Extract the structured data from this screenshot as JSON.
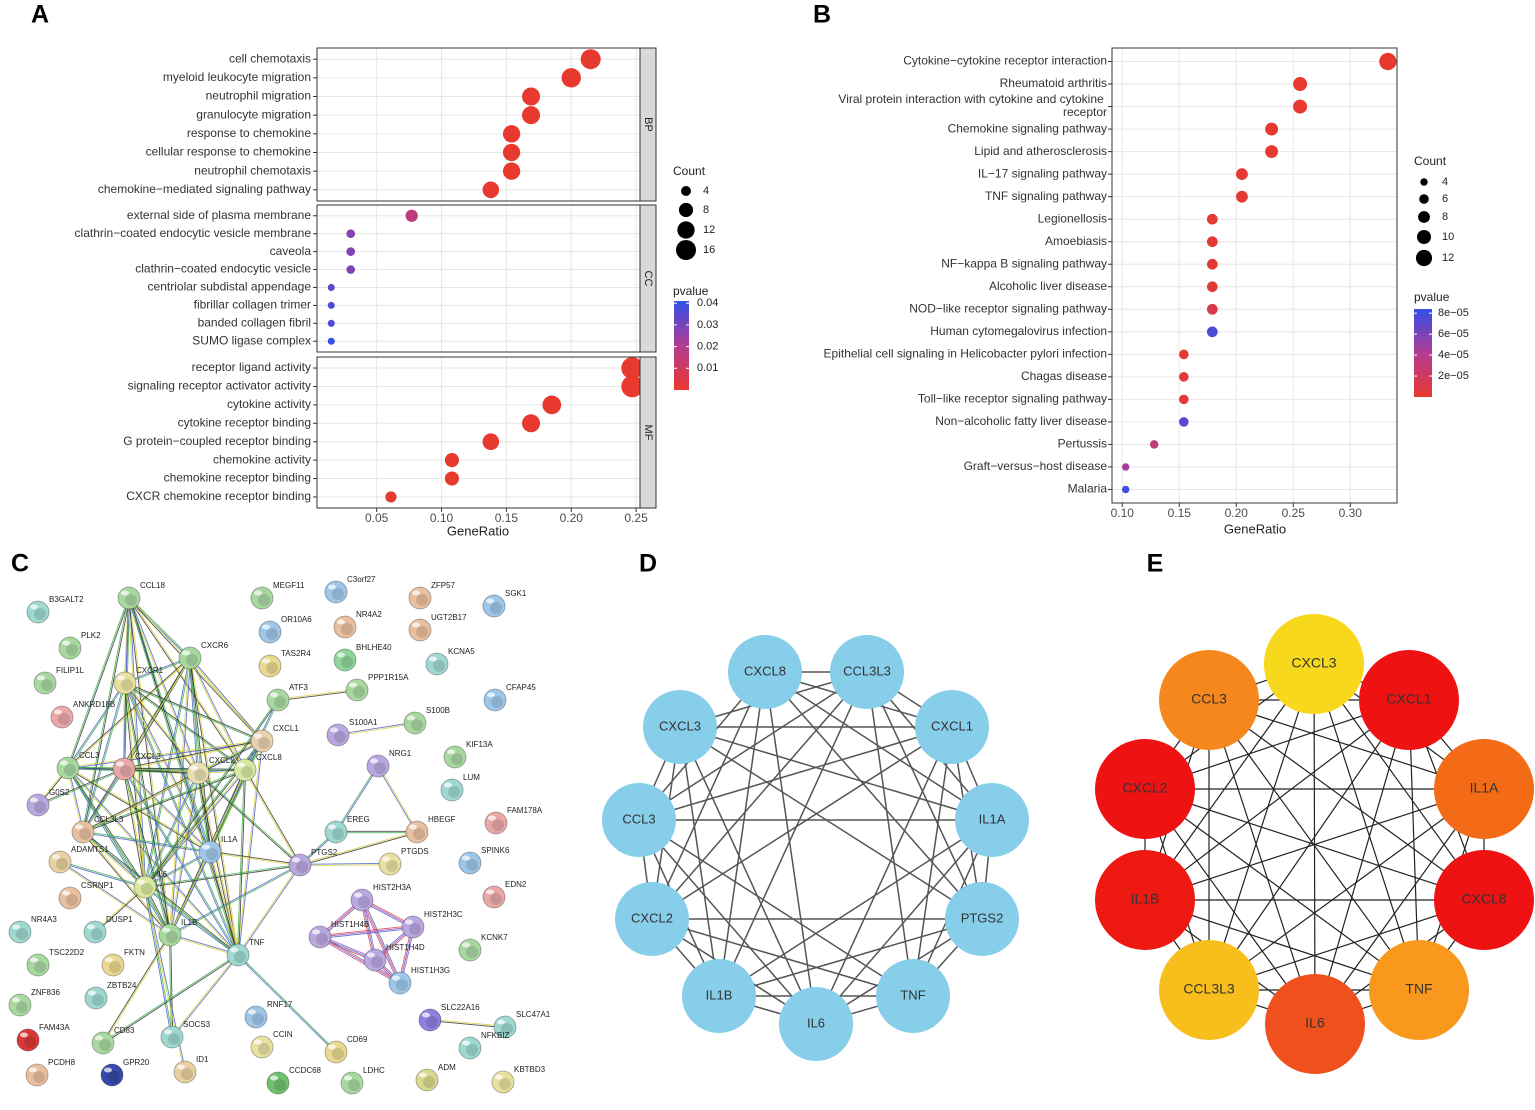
{
  "chart_data": [
    {
      "panel": "A",
      "type": "dot",
      "x_label": "GeneRatio",
      "xlim": [
        0.004,
        0.253
      ],
      "xticks": [
        0.05,
        {
          "value": 0.1,
          "label": "0.10"
        },
        0.15,
        {
          "value": 0.2,
          "label": "0.20"
        },
        0.25
      ],
      "grid": true,
      "facets": [
        {
          "name": "BP",
          "categories": [
            "cell chemotaxis",
            "myeloid leukocyte migration",
            "neutrophil migration",
            "granulocyte migration",
            "response to chemokine",
            "cellular response to chemokine",
            "neutrophil chemotaxis",
            "chemokine−mediated signaling pathway"
          ],
          "values": [
            0.215,
            0.2,
            0.169,
            0.169,
            0.154,
            0.154,
            0.154,
            0.138
          ],
          "sizes": [
            16,
            15,
            13,
            13,
            12,
            12,
            12,
            11
          ],
          "pvalues": [
            1e-09,
            1e-09,
            2e-07,
            2e-07,
            5e-07,
            5e-07,
            5e-07,
            2e-06
          ]
        },
        {
          "name": "CC",
          "categories": [
            "external side of plasma membrane",
            "clathrin−coated endocytic vesicle membrane",
            "caveola",
            "clathrin−coated endocytic vesicle",
            "centriolar subdistal appendage",
            "fibrillar collagen trimer",
            "banded collagen fibril",
            "SUMO ligase complex"
          ],
          "values": [
            0.077,
            0.03,
            0.03,
            0.03,
            0.015,
            0.015,
            0.015,
            0.015
          ],
          "sizes": [
            6,
            3,
            3,
            3,
            2,
            2,
            2,
            2
          ],
          "pvalues": [
            0.016,
            0.027,
            0.028,
            0.029,
            0.034,
            0.036,
            0.037,
            0.041
          ]
        },
        {
          "name": "MF",
          "categories": [
            "receptor ligand activity",
            "signaling receptor activator activity",
            "cytokine activity",
            "cytokine receptor binding",
            "G protein−coupled receptor binding",
            "chemokine activity",
            "chemokine receptor binding",
            "CXCR chemokine receptor binding"
          ],
          "values": [
            0.247,
            0.247,
            0.185,
            0.169,
            0.138,
            0.108,
            0.108,
            0.061
          ],
          "sizes": [
            19,
            19,
            14,
            13,
            11,
            8,
            8,
            5
          ],
          "pvalues": [
            1e-08,
            1e-08,
            2e-08,
            5e-08,
            1e-06,
            2e-05,
            2e-05,
            0.0012
          ]
        }
      ],
      "size_legend": {
        "title": "Count",
        "values": [
          4,
          8,
          12,
          16
        ]
      },
      "color_legend": {
        "title": "pvalue",
        "lim": [
          0,
          0.041
        ],
        "ticks": [
          0.01,
          0.02,
          0.03,
          0.04
        ],
        "colors": [
          "#e8392e",
          "#b23b93",
          "#3250e8"
        ]
      }
    },
    {
      "panel": "B",
      "type": "dot",
      "x_label": "GeneRatio",
      "xlim": [
        0.091,
        0.341
      ],
      "xticks": [
        {
          "value": 0.1,
          "label": "0.10"
        },
        0.15,
        {
          "value": 0.2,
          "label": "0.20"
        },
        0.25,
        {
          "value": 0.3,
          "label": "0.30"
        }
      ],
      "grid": true,
      "facets": [
        {
          "categories": [
            "Cytokine−cytokine receptor interaction",
            "Rheumatoid arthritis",
            "Viral protein interaction with cytokine and cytokine receptor",
            "Chemokine signaling pathway",
            "Lipid and atherosclerosis",
            "IL−17 signaling pathway",
            "TNF signaling pathway",
            "Legionellosis",
            "Amoebiasis",
            "NF−kappa B signaling pathway",
            "Alcoholic liver disease",
            "NOD−like receptor signaling pathway",
            "Human cytomegalovirus infection",
            "Epithelial cell signaling in Helicobacter pylori infection",
            "Chagas disease",
            "Toll−like receptor signaling pathway",
            "Non−alcoholic fatty liver disease",
            "Pertussis",
            "Graft−versus−host disease",
            "Malaria"
          ],
          "values": [
            0.333,
            0.256,
            0.256,
            0.231,
            0.231,
            0.205,
            0.205,
            0.179,
            0.179,
            0.179,
            0.179,
            0.179,
            0.179,
            0.154,
            0.154,
            0.154,
            0.154,
            0.128,
            0.103,
            0.103
          ],
          "sizes": [
            13,
            10,
            10,
            9,
            9,
            8,
            8,
            7,
            7,
            7,
            7,
            7,
            7,
            6,
            6,
            6,
            6,
            5,
            4,
            4
          ],
          "pvalues": [
            1e-08,
            2e-07,
            2e-07,
            1e-06,
            1e-06,
            3e-06,
            3e-06,
            2e-06,
            2e-06,
            3e-06,
            4e-06,
            1.2e-05,
            7.6e-05,
            3e-06,
            3e-06,
            4e-06,
            7.2e-05,
            3.2e-05,
            4.5e-05,
            8e-05
          ]
        }
      ],
      "size_legend": {
        "title": "Count",
        "values": [
          4,
          6,
          8,
          10,
          12
        ]
      },
      "color_legend": {
        "title": "pvalue",
        "lim": [
          0,
          8.4e-05
        ],
        "ticks": [
          {
            "value": 2e-05,
            "label": "2e−05"
          },
          {
            "value": 4e-05,
            "label": "4e−05"
          },
          {
            "value": 6e-05,
            "label": "6e−05"
          },
          {
            "value": 8e-05,
            "label": "8e−05"
          }
        ],
        "colors": [
          "#e8392e",
          "#b23b93",
          "#3250e8"
        ]
      }
    }
  ],
  "networks": [
    {
      "panel": "C",
      "nodes": [
        {
          "label": "B3GALT2",
          "color": "#9ed8d0"
        },
        {
          "label": "CCL18",
          "color": "#a8d8a0"
        },
        {
          "label": "MEGF11",
          "color": "#a8d8a0"
        },
        {
          "label": "C3orf27",
          "color": "#9ec6e8"
        },
        {
          "label": "ZFP57",
          "color": "#e8c0a0"
        },
        {
          "label": "SGK1",
          "color": "#9ec6e8"
        },
        {
          "label": "PLK2",
          "color": "#a8d8a0"
        },
        {
          "label": "OR10A6",
          "color": "#9ec6e8"
        },
        {
          "label": "NR4A2",
          "color": "#e8c0a0"
        },
        {
          "label": "UGT2B17",
          "color": "#e8c0a0"
        },
        {
          "label": "FILIP1L",
          "color": "#a8d8a0"
        },
        {
          "label": "CXCR6",
          "color": "#a8d8a0"
        },
        {
          "label": "TAS2R4",
          "color": "#e8d890"
        },
        {
          "label": "BHLHE40",
          "color": "#8fd49a"
        },
        {
          "label": "KCNA5",
          "color": "#9ed8d0"
        },
        {
          "label": "CXCR1",
          "color": "#e8e0a0"
        },
        {
          "label": "ANKRD18B",
          "color": "#e8a8a8"
        },
        {
          "label": "ATF3",
          "color": "#a8d8a0"
        },
        {
          "label": "PPP1R15A",
          "color": "#a8d8a0"
        },
        {
          "label": "CFAP45",
          "color": "#9ec6e8"
        },
        {
          "label": "S100A1",
          "color": "#b9a8e0"
        },
        {
          "label": "S100B",
          "color": "#a8d8a0"
        },
        {
          "label": "CXCL1",
          "color": "#e8d0b0"
        },
        {
          "label": "CCL3",
          "color": "#a8d8a0"
        },
        {
          "label": "CXCL3",
          "color": "#e8a8a8"
        },
        {
          "label": "CXCL2",
          "color": "#e8e0b0"
        },
        {
          "label": "CXCL8",
          "color": "#d8e8a0"
        },
        {
          "label": "NRG1",
          "color": "#b9a8e0"
        },
        {
          "label": "KIF13A",
          "color": "#a8d8a0"
        },
        {
          "label": "LUM",
          "color": "#9ed8d0"
        },
        {
          "label": "G0S2",
          "color": "#b9a8e0"
        },
        {
          "label": "FAM178A",
          "color": "#e8a8a8"
        },
        {
          "label": "CCL3L3",
          "color": "#e8c0a0"
        },
        {
          "label": "EREG",
          "color": "#9ed8d0"
        },
        {
          "label": "HBEGF",
          "color": "#e8c0a0"
        },
        {
          "label": "IL1A",
          "color": "#9ec6e8"
        },
        {
          "label": "PTGS2",
          "color": "#b9a8e0"
        },
        {
          "label": "PTGDS",
          "color": "#e8e0a0"
        },
        {
          "label": "SPINK6",
          "color": "#9ec6e8"
        },
        {
          "label": "ADAMTS1",
          "color": "#e8d0a0"
        },
        {
          "label": "CSRNP1",
          "color": "#e8c0a0"
        },
        {
          "label": "IL6",
          "color": "#d8e8a0"
        },
        {
          "label": "EDN2",
          "color": "#e8a8a8"
        },
        {
          "label": "HIST2H3A",
          "color": "#b9a8e0"
        },
        {
          "label": "HIST1H4B",
          "color": "#b9a8e0"
        },
        {
          "label": "HIST2H3C",
          "color": "#b9a8e0"
        },
        {
          "label": "NR4A3",
          "color": "#9ed8d0"
        },
        {
          "label": "DUSP1",
          "color": "#9ed8d0"
        },
        {
          "label": "IL1B",
          "color": "#a8d8a0"
        },
        {
          "label": "TNF",
          "color": "#9ed8d0"
        },
        {
          "label": "FKTN",
          "color": "#e8d890"
        },
        {
          "label": "KCNK7",
          "color": "#a8d8a0"
        },
        {
          "label": "TSC22D2",
          "color": "#a8d8a0"
        },
        {
          "label": "HIST1H4D",
          "color": "#b9a8e0"
        },
        {
          "label": "HIST1H3G",
          "color": "#9ec6e8"
        },
        {
          "label": "ZBTB24",
          "color": "#9ed8d0"
        },
        {
          "label": "ZNF836",
          "color": "#a8d8a0"
        },
        {
          "label": "RNF17",
          "color": "#9ec6e8"
        },
        {
          "label": "SLC22A16",
          "color": "#8f7fe0"
        },
        {
          "label": "SLC47A1",
          "color": "#9ed8d0"
        },
        {
          "label": "FAM43A",
          "color": "#d83838"
        },
        {
          "label": "CD83",
          "color": "#a8d8a0"
        },
        {
          "label": "SOCS3",
          "color": "#9ed8d0"
        },
        {
          "label": "CCIN",
          "color": "#e8e0a0"
        },
        {
          "label": "CD69",
          "color": "#e8d890"
        },
        {
          "label": "NFKBIZ",
          "color": "#9ed8d0"
        },
        {
          "label": "PCDH8",
          "color": "#e8c0a0"
        },
        {
          "label": "GPR20",
          "color": "#3848a8"
        },
        {
          "label": "ID1",
          "color": "#e8d0a0"
        },
        {
          "label": "CCDC68",
          "color": "#70c070"
        },
        {
          "label": "LDHC",
          "color": "#a8d8a0"
        },
        {
          "label": "ADM",
          "color": "#d8d890"
        },
        {
          "label": "KBTBD3",
          "color": "#e8e0a0"
        }
      ]
    },
    {
      "panel": "D",
      "color": "#87ceeb",
      "nodes": [
        "CXCL8",
        "CCL3L3",
        "CXCL1",
        "IL1A",
        "PTGS2",
        "TNF",
        "IL6",
        "IL1B",
        "CXCL2",
        "CCL3",
        "CXCL3"
      ]
    },
    {
      "panel": "E",
      "nodes": [
        {
          "label": "CXCL3",
          "color": "#f8d81c"
        },
        {
          "label": "CXCL1",
          "color": "#ee1212"
        },
        {
          "label": "IL1A",
          "color": "#f36b17"
        },
        {
          "label": "CXCL8",
          "color": "#ee1212"
        },
        {
          "label": "TNF",
          "color": "#f8991d"
        },
        {
          "label": "IL6",
          "color": "#f0501e"
        },
        {
          "label": "CCL3L3",
          "color": "#f8be1c"
        },
        {
          "label": "IL1B",
          "color": "#ee1a12"
        },
        {
          "label": "CXCL2",
          "color": "#ee1212"
        },
        {
          "label": "CCL3",
          "color": "#f6871d"
        }
      ]
    }
  ]
}
